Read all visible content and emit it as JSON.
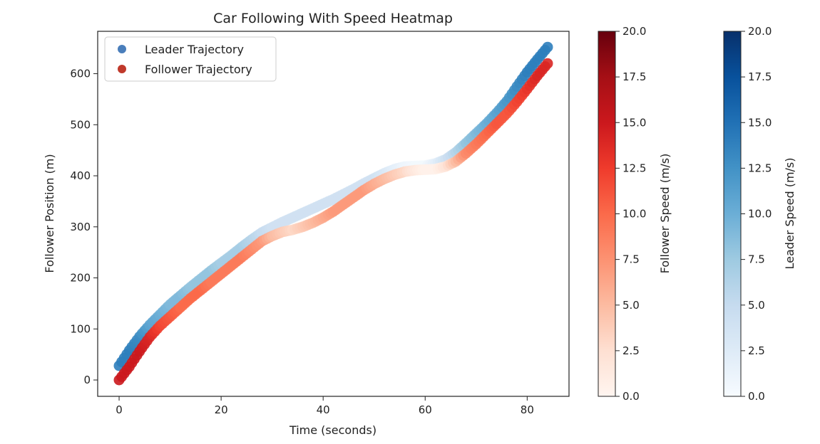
{
  "chart_data": {
    "type": "scatter",
    "title": "Car Following With Speed Heatmap",
    "xlabel": "Time (seconds)",
    "ylabel": "Follower Position (m)",
    "xlim": [
      -4.2,
      88.2
    ],
    "ylim": [
      -32,
      683
    ],
    "xticks": [
      "0",
      "20",
      "40",
      "60",
      "80"
    ],
    "yticks": [
      "0",
      "100",
      "200",
      "300",
      "400",
      "500",
      "600"
    ],
    "grid": false,
    "legend": {
      "position": "top-left",
      "entries": [
        "Leader Trajectory",
        "Follower Trajectory"
      ]
    },
    "series": [
      {
        "name": "Leader Trajectory",
        "color": "#4a7ebb",
        "colormap": "Blues",
        "x": [
          0,
          2,
          4,
          6,
          8,
          10,
          12,
          14,
          16,
          18,
          20,
          22,
          24,
          26,
          28,
          30,
          32,
          34,
          36,
          38,
          40,
          42,
          44,
          46,
          48,
          50,
          52,
          54,
          56,
          58,
          60,
          62,
          64,
          66,
          68,
          70,
          72,
          74,
          76,
          78,
          80,
          82,
          84
        ],
        "y": [
          28,
          58,
          85,
          108,
          128,
          148,
          165,
          182,
          198,
          214,
          229,
          244,
          260,
          275,
          289,
          299,
          309,
          318,
          327,
          336,
          345,
          354,
          364,
          374,
          385,
          395,
          405,
          413,
          418,
          419,
          420,
          424,
          432,
          446,
          464,
          483,
          502,
          523,
          546,
          575,
          603,
          628,
          652
        ],
        "speed": [
          14,
          14,
          13,
          11,
          10,
          9,
          9,
          8,
          8,
          8,
          7,
          7,
          7,
          6,
          5,
          4,
          4,
          4,
          4,
          4,
          4,
          4,
          4,
          4,
          4,
          4,
          3,
          2,
          1,
          0.5,
          0.5,
          2,
          4,
          6,
          8,
          9,
          10,
          11,
          12,
          13,
          14,
          14,
          14
        ]
      },
      {
        "name": "Follower Trajectory",
        "color": "#c0392b",
        "colormap": "Reds",
        "x": [
          0,
          2,
          4,
          6,
          8,
          10,
          12,
          14,
          16,
          18,
          20,
          22,
          24,
          26,
          28,
          30,
          32,
          34,
          36,
          38,
          40,
          42,
          44,
          46,
          48,
          50,
          52,
          54,
          56,
          58,
          60,
          62,
          64,
          66,
          68,
          70,
          72,
          74,
          76,
          78,
          80,
          82,
          84
        ],
        "y": [
          0,
          26,
          56,
          84,
          106,
          124,
          142,
          160,
          176,
          192,
          208,
          224,
          240,
          256,
          272,
          282,
          290,
          294,
          300,
          308,
          318,
          330,
          344,
          358,
          372,
          384,
          394,
          402,
          408,
          411,
          412,
          413,
          418,
          428,
          444,
          462,
          482,
          502,
          522,
          545,
          570,
          596,
          620
        ],
        "speed": [
          15,
          15,
          15,
          14,
          12,
          11,
          10,
          10,
          10,
          9,
          9,
          9,
          9,
          8,
          7,
          5,
          4,
          3,
          4,
          5,
          6,
          7,
          7,
          7,
          7,
          6,
          5,
          4,
          3,
          1.5,
          0.5,
          0.5,
          2,
          5,
          8,
          9,
          10,
          11,
          11,
          12,
          13,
          14,
          14
        ]
      }
    ],
    "colorbars": [
      {
        "label": "Follower Speed (m/s)",
        "colormap": "Reds",
        "range": [
          0,
          20
        ],
        "ticks": [
          "0.0",
          "2.5",
          "5.0",
          "7.5",
          "10.0",
          "12.5",
          "15.0",
          "17.5",
          "20.0"
        ]
      },
      {
        "label": "Leader Speed (m/s)",
        "colormap": "Blues",
        "range": [
          0,
          20
        ],
        "ticks": [
          "0.0",
          "2.5",
          "5.0",
          "7.5",
          "10.0",
          "12.5",
          "15.0",
          "17.5",
          "20.0"
        ]
      }
    ]
  }
}
